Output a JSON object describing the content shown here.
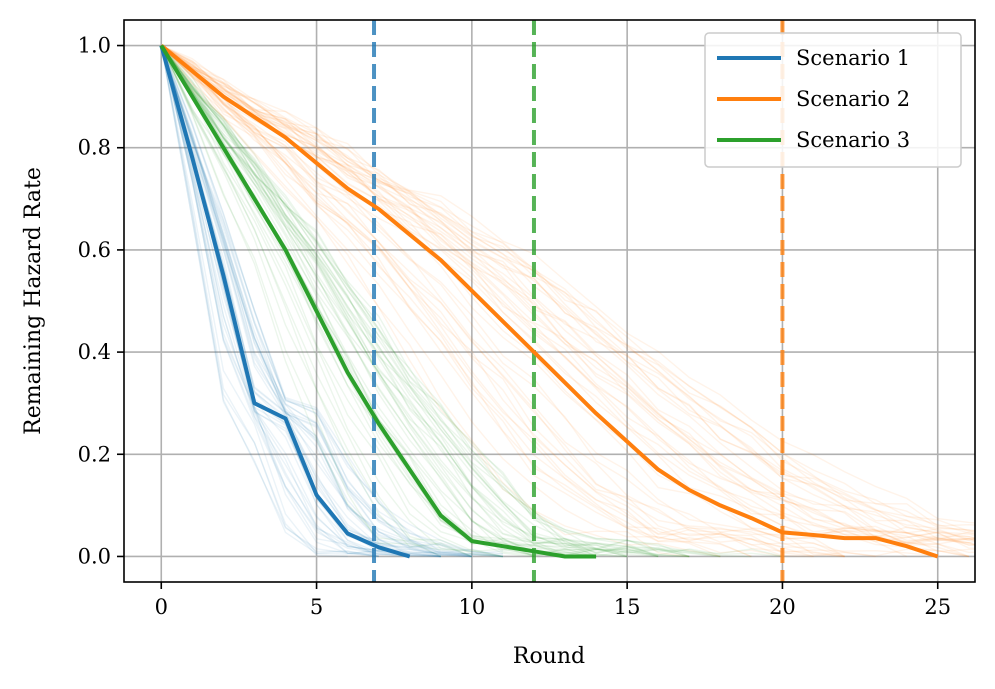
{
  "chart_data": {
    "type": "line",
    "xlabel": "Round",
    "ylabel": "Remaining Hazard Rate",
    "xlim": [
      -1.2,
      26.2
    ],
    "ylim": [
      -0.05,
      1.05
    ],
    "xticks": [
      0,
      5,
      10,
      15,
      20,
      25
    ],
    "xtick_labels": [
      "0",
      "5",
      "10",
      "15",
      "20",
      "25"
    ],
    "yticks": [
      0.0,
      0.2,
      0.4,
      0.6,
      0.8,
      1.0
    ],
    "ytick_labels": [
      "0.0",
      "0.2",
      "0.4",
      "0.6",
      "0.8",
      "1.0"
    ],
    "grid": true,
    "legend_position": "top-right",
    "series": [
      {
        "name": "Scenario 1",
        "color": "#1f77b4",
        "x": [
          0,
          1,
          2,
          3,
          4,
          5,
          6,
          7,
          8
        ],
        "y": [
          1.0,
          0.78,
          0.55,
          0.3,
          0.27,
          0.12,
          0.045,
          0.018,
          0.0
        ],
        "mean_round": 6.85
      },
      {
        "name": "Scenario 2",
        "color": "#ff7f0e",
        "x": [
          0,
          1,
          2,
          3,
          4,
          5,
          6,
          7,
          8,
          9,
          10,
          11,
          12,
          13,
          14,
          15,
          16,
          17,
          18,
          19,
          20,
          21,
          22,
          23,
          24,
          25
        ],
        "y": [
          1.0,
          0.95,
          0.9,
          0.86,
          0.82,
          0.77,
          0.72,
          0.68,
          0.63,
          0.58,
          0.52,
          0.46,
          0.4,
          0.34,
          0.28,
          0.225,
          0.17,
          0.13,
          0.1,
          0.075,
          0.047,
          0.042,
          0.036,
          0.036,
          0.02,
          0.0
        ],
        "mean_round": 20.0
      },
      {
        "name": "Scenario 3",
        "color": "#2ca02c",
        "x": [
          0,
          1,
          2,
          3,
          4,
          5,
          6,
          7,
          8,
          9,
          10,
          11,
          12,
          13,
          14
        ],
        "y": [
          1.0,
          0.9,
          0.8,
          0.7,
          0.6,
          0.48,
          0.36,
          0.26,
          0.17,
          0.08,
          0.03,
          0.02,
          0.01,
          0.0,
          0.0
        ],
        "mean_round": 12.0
      }
    ]
  }
}
